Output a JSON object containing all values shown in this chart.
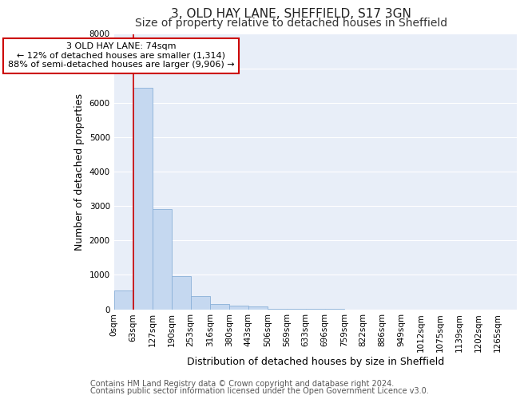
{
  "title_line1": "3, OLD HAY LANE, SHEFFIELD, S17 3GN",
  "title_line2": "Size of property relative to detached houses in Sheffield",
  "xlabel": "Distribution of detached houses by size in Sheffield",
  "ylabel": "Number of detached properties",
  "bar_labels": [
    "0sqm",
    "63sqm",
    "127sqm",
    "190sqm",
    "253sqm",
    "316sqm",
    "380sqm",
    "443sqm",
    "506sqm",
    "569sqm",
    "633sqm",
    "696sqm",
    "759sqm",
    "822sqm",
    "886sqm",
    "949sqm",
    "1012sqm",
    "1075sqm",
    "1139sqm",
    "1202sqm",
    "1265sqm"
  ],
  "bar_values": [
    550,
    6430,
    2920,
    970,
    380,
    160,
    100,
    70,
    15,
    5,
    2,
    1,
    0,
    0,
    0,
    0,
    0,
    0,
    0,
    0,
    0
  ],
  "bar_color": "#c5d8f0",
  "bar_edge_color": "#8ab0d8",
  "vline_x": 1,
  "vline_color": "#cc0000",
  "annotation_text": "3 OLD HAY LANE: 74sqm\n← 12% of detached houses are smaller (1,314)\n88% of semi-detached houses are larger (9,906) →",
  "annotation_box_facecolor": "#ffffff",
  "annotation_box_edgecolor": "#cc0000",
  "ylim": [
    0,
    8000
  ],
  "yticks": [
    0,
    1000,
    2000,
    3000,
    4000,
    5000,
    6000,
    7000,
    8000
  ],
  "plot_bg_color": "#e8eef8",
  "fig_bg_color": "#ffffff",
  "grid_color": "#ffffff",
  "footer_line1": "Contains HM Land Registry data © Crown copyright and database right 2024.",
  "footer_line2": "Contains public sector information licensed under the Open Government Licence v3.0.",
  "title_fontsize": 11,
  "subtitle_fontsize": 10,
  "axis_label_fontsize": 9,
  "tick_fontsize": 7.5,
  "annotation_fontsize": 8,
  "footer_fontsize": 7
}
